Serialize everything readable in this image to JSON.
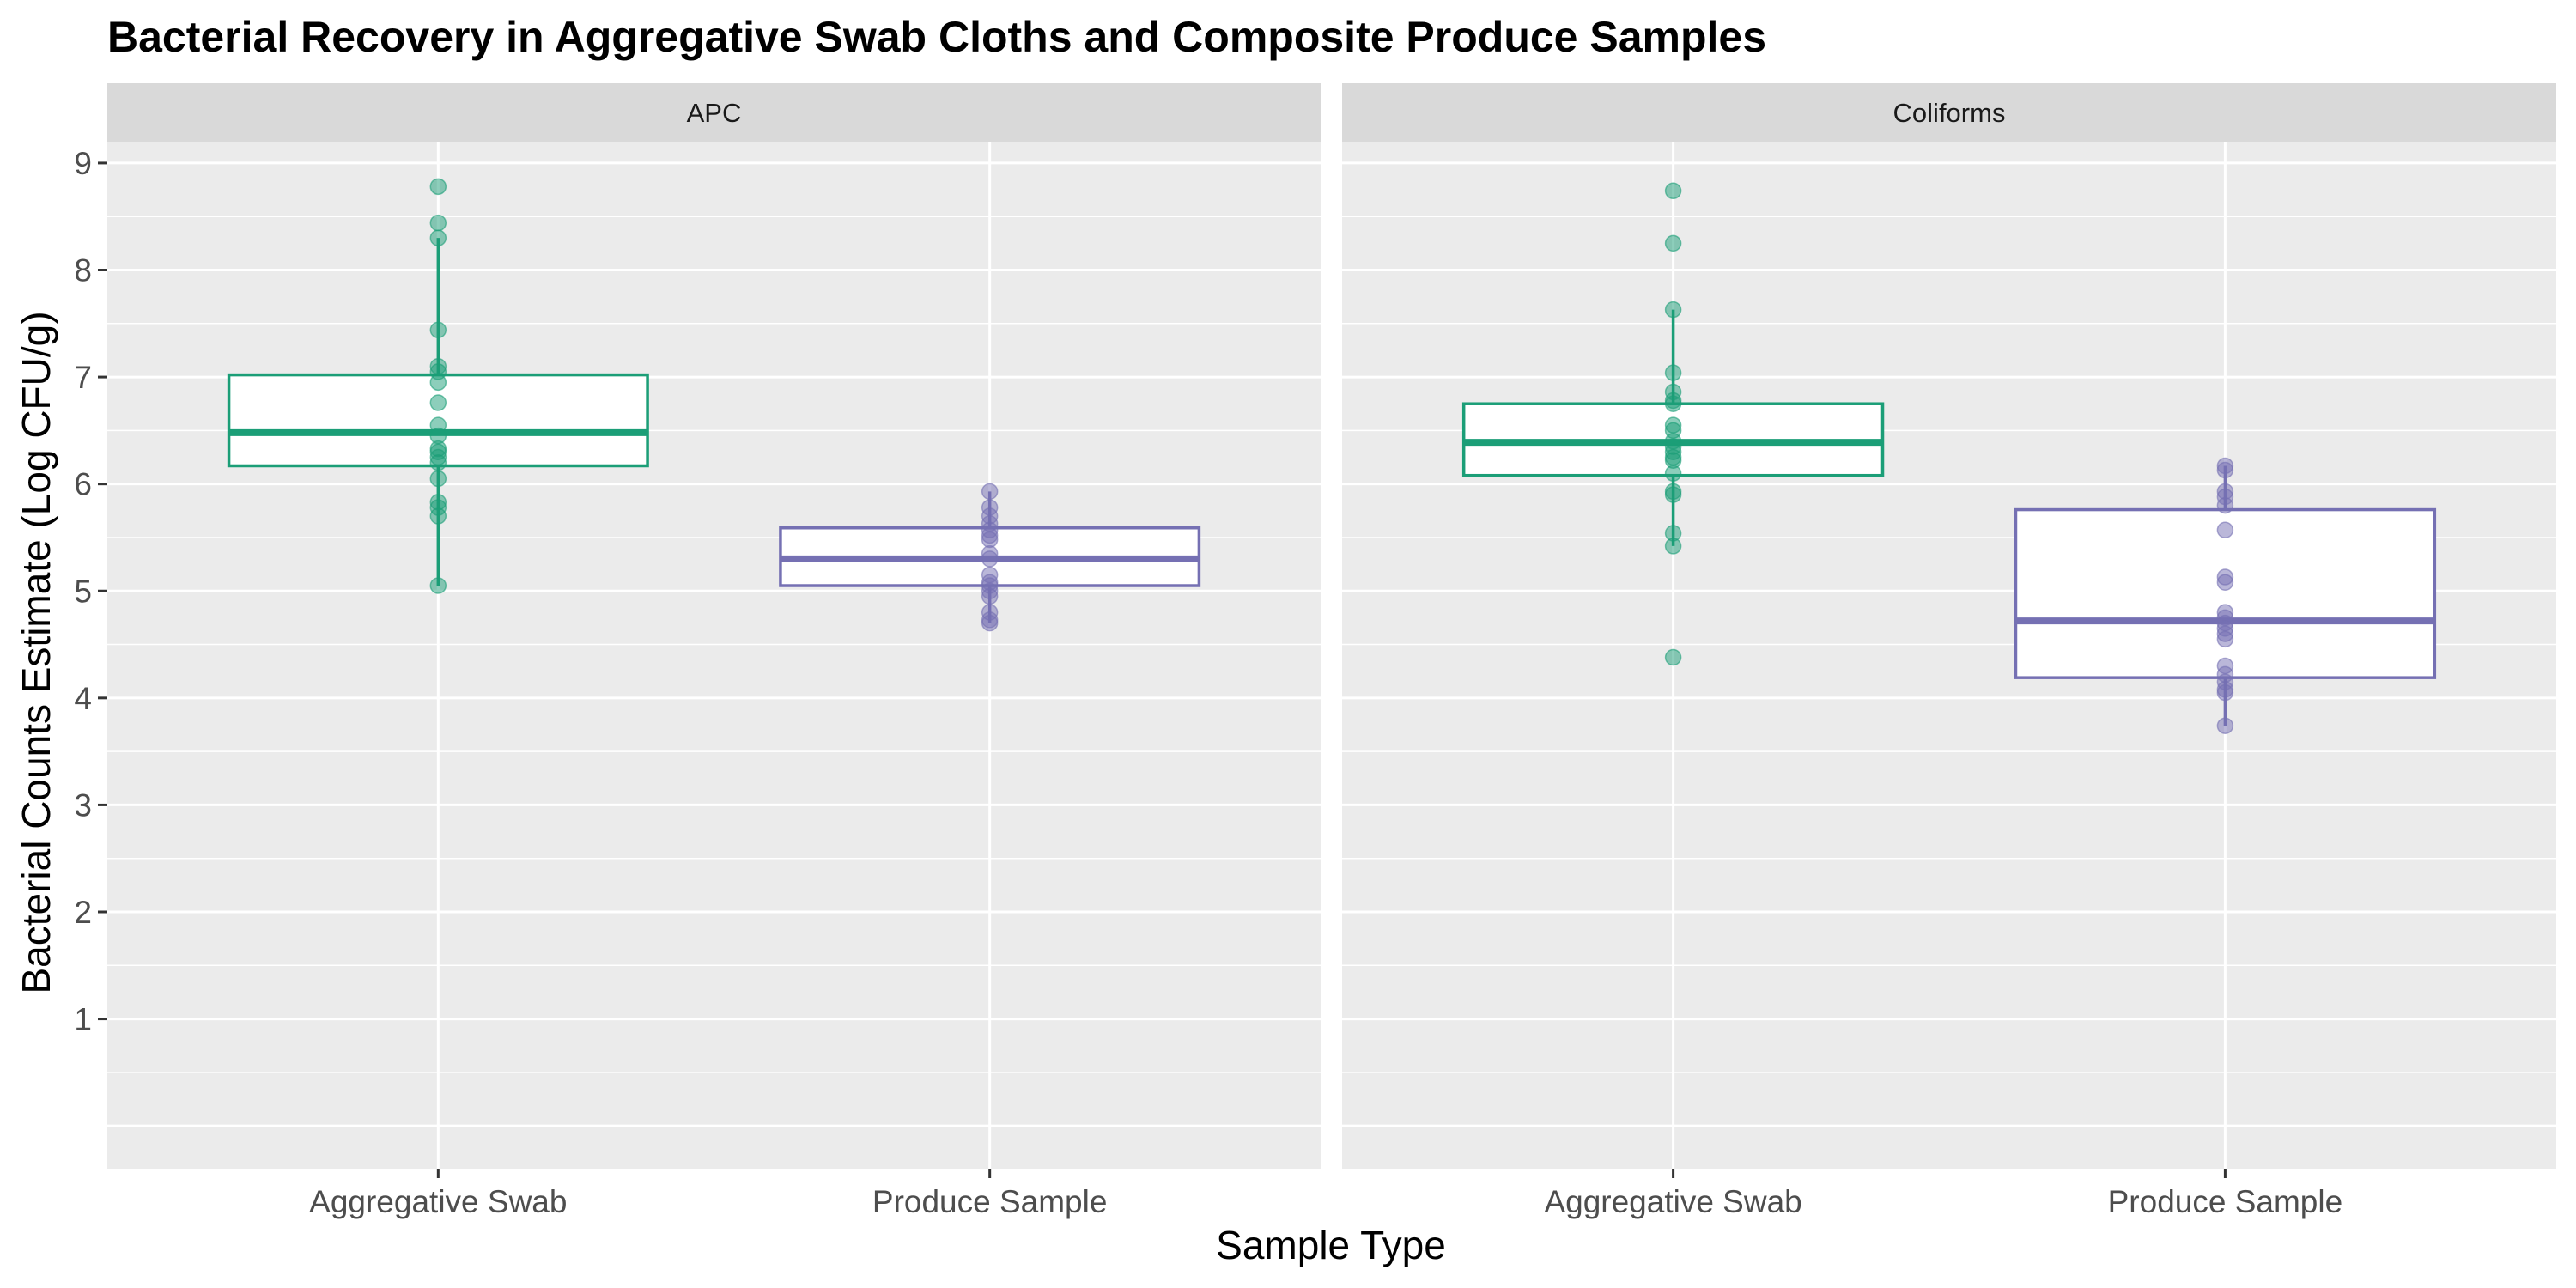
{
  "chart_data": {
    "type": "box",
    "title": "Bacterial Recovery in Aggregative Swab Cloths and Composite Produce Samples",
    "xlabel": "Sample Type",
    "ylabel": "Bacterial Counts Estimate (Log CFU/g)",
    "ylim": [
      -0.4,
      9.2
    ],
    "yticks": [
      1,
      2,
      3,
      4,
      5,
      6,
      7,
      8,
      9
    ],
    "categories": [
      "Aggregative Swab",
      "Produce Sample"
    ],
    "colors": {
      "Aggregative Swab": "#1b9e77",
      "Produce Sample": "#7570b3"
    },
    "grid": true,
    "legend": "none",
    "facets": [
      {
        "label": "APC",
        "boxes": [
          {
            "category": "Aggregative Swab",
            "q1": 6.17,
            "median": 6.48,
            "q3": 7.02,
            "whisker_low": 5.05,
            "whisker_high": 8.3,
            "points": [
              8.78,
              8.44,
              8.3,
              7.44,
              7.1,
              7.05,
              6.95,
              6.76,
              6.55,
              6.45,
              6.33,
              6.3,
              6.25,
              6.2,
              6.05,
              5.83,
              5.78,
              5.7,
              5.05
            ]
          },
          {
            "category": "Produce Sample",
            "q1": 5.05,
            "median": 5.3,
            "q3": 5.59,
            "whisker_low": 4.7,
            "whisker_high": 5.93,
            "points": [
              5.93,
              5.78,
              5.7,
              5.63,
              5.57,
              5.52,
              5.48,
              5.35,
              5.3,
              5.15,
              5.08,
              5.05,
              5.0,
              4.95,
              4.8,
              4.73,
              4.7
            ]
          }
        ]
      },
      {
        "label": "Coliforms",
        "boxes": [
          {
            "category": "Aggregative Swab",
            "q1": 6.08,
            "median": 6.39,
            "q3": 6.75,
            "whisker_low": 5.42,
            "whisker_high": 7.63,
            "points": [
              8.74,
              8.25,
              7.63,
              7.04,
              6.86,
              6.78,
              6.75,
              6.55,
              6.5,
              6.4,
              6.35,
              6.3,
              6.25,
              6.22,
              6.1,
              5.93,
              5.9,
              5.54,
              5.42,
              4.38
            ]
          },
          {
            "category": "Produce Sample",
            "q1": 4.19,
            "median": 4.72,
            "q3": 5.76,
            "whisker_low": 3.74,
            "whisker_high": 6.17,
            "points": [
              6.17,
              6.13,
              5.93,
              5.88,
              5.8,
              5.57,
              5.13,
              5.08,
              4.8,
              4.75,
              4.7,
              4.65,
              4.6,
              4.55,
              4.3,
              4.22,
              4.15,
              4.08,
              4.05,
              3.74
            ]
          }
        ]
      }
    ]
  }
}
